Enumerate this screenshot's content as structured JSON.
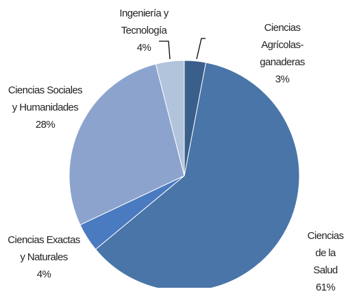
{
  "chart_data": {
    "type": "pie",
    "categories": [
      "Ciencias Agrícolas-ganaderas",
      "Ciencias de la\nSalud",
      "Ciencias Exactas\ny Naturales",
      "Ciencias Sociales\ny Humanidades",
      "Ingeniería y\nTecnología"
    ],
    "values": [
      3,
      61,
      4,
      28,
      4
    ],
    "value_labels": [
      "3%",
      "61%",
      "4%",
      "28%",
      "4%"
    ],
    "colors": [
      "#3b5f8b",
      "#4975a8",
      "#4a7ac0",
      "#8ca4cd",
      "#b2c3dc"
    ]
  }
}
